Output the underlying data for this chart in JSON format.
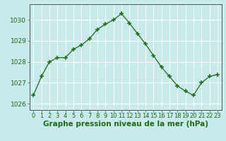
{
  "x": [
    0,
    1,
    2,
    3,
    4,
    5,
    6,
    7,
    8,
    9,
    10,
    11,
    12,
    13,
    14,
    15,
    16,
    17,
    18,
    19,
    20,
    21,
    22,
    23
  ],
  "y": [
    1026.4,
    1027.3,
    1028.0,
    1028.2,
    1028.2,
    1028.6,
    1028.8,
    1029.1,
    1029.55,
    1029.8,
    1030.0,
    1030.3,
    1029.85,
    1029.35,
    1028.85,
    1028.3,
    1027.75,
    1027.3,
    1026.85,
    1026.6,
    1026.4,
    1027.0,
    1027.3,
    1027.4
  ],
  "line_color": "#1a6b1a",
  "marker_color": "#1a6b1a",
  "bg_color": "#c8eaea",
  "plot_bg_color": "#c8eaea",
  "grid_color": "#ffffff",
  "ylabel_ticks": [
    1026,
    1027,
    1028,
    1029,
    1030
  ],
  "xlabel": "Graphe pression niveau de la mer (hPa)",
  "xlabel_color": "#1a6b1a",
  "xlabel_fontsize": 7.5,
  "tick_fontsize": 6.5,
  "ylim": [
    1025.7,
    1030.75
  ],
  "xlim": [
    -0.5,
    23.5
  ]
}
